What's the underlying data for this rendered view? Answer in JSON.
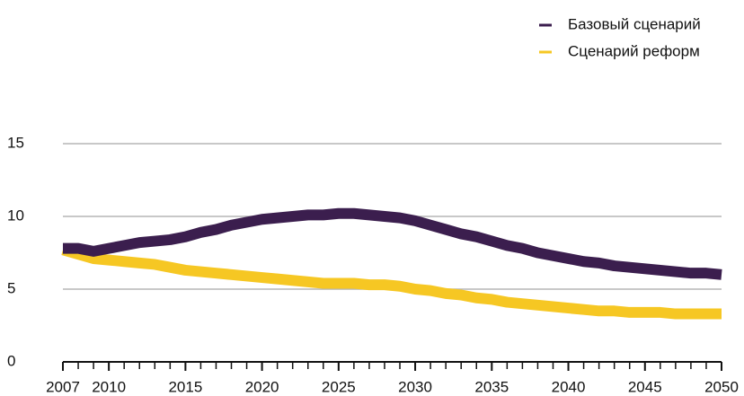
{
  "chart_data": {
    "type": "line",
    "x": [
      2007,
      2008,
      2009,
      2010,
      2011,
      2012,
      2013,
      2014,
      2015,
      2016,
      2017,
      2018,
      2019,
      2020,
      2021,
      2022,
      2023,
      2024,
      2025,
      2026,
      2027,
      2028,
      2029,
      2030,
      2031,
      2032,
      2033,
      2034,
      2035,
      2036,
      2037,
      2038,
      2039,
      2040,
      2041,
      2042,
      2043,
      2044,
      2045,
      2046,
      2047,
      2048,
      2049,
      2050
    ],
    "series": [
      {
        "name": "Базовый сценарий",
        "color": "#3b1e4e",
        "values": [
          7.8,
          7.8,
          7.6,
          7.8,
          8.0,
          8.2,
          8.3,
          8.4,
          8.6,
          8.9,
          9.1,
          9.4,
          9.6,
          9.8,
          9.9,
          10.0,
          10.1,
          10.1,
          10.2,
          10.2,
          10.1,
          10.0,
          9.9,
          9.7,
          9.4,
          9.1,
          8.8,
          8.6,
          8.3,
          8.0,
          7.8,
          7.5,
          7.3,
          7.1,
          6.9,
          6.8,
          6.6,
          6.5,
          6.4,
          6.3,
          6.2,
          6.1,
          6.1,
          6.0
        ]
      },
      {
        "name": "Сценарий реформ",
        "color": "#f6c723",
        "values": [
          7.7,
          7.4,
          7.1,
          7.0,
          6.9,
          6.8,
          6.7,
          6.5,
          6.3,
          6.2,
          6.1,
          6.0,
          5.9,
          5.8,
          5.7,
          5.6,
          5.5,
          5.4,
          5.4,
          5.4,
          5.3,
          5.3,
          5.2,
          5.0,
          4.9,
          4.7,
          4.6,
          4.4,
          4.3,
          4.1,
          4.0,
          3.9,
          3.8,
          3.7,
          3.6,
          3.5,
          3.5,
          3.4,
          3.4,
          3.4,
          3.3,
          3.3,
          3.3,
          3.3
        ]
      }
    ],
    "xlim": [
      2007,
      2050
    ],
    "xticks": [
      2007,
      2010,
      2015,
      2020,
      2025,
      2030,
      2035,
      2040,
      2045,
      2050
    ],
    "ylim": [
      0,
      15
    ],
    "yticks": [
      0,
      5,
      10,
      15
    ],
    "grid": true,
    "legend": "top-right"
  }
}
